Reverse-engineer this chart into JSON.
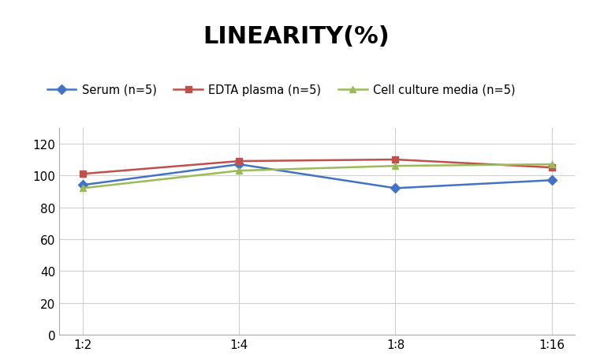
{
  "title": "LINEARITY(%)",
  "x_labels": [
    "1∶2",
    "1∶4",
    "1∶8",
    "1∶16"
  ],
  "x_positions": [
    0,
    1,
    2,
    3
  ],
  "series": [
    {
      "label": "Serum (n=5)",
      "values": [
        94,
        107,
        92,
        97
      ],
      "color": "#4472C4",
      "marker": "D",
      "marker_size": 6,
      "linewidth": 1.8
    },
    {
      "label": "EDTA plasma (n=5)",
      "values": [
        101,
        109,
        110,
        105
      ],
      "color": "#C0504D",
      "marker": "s",
      "marker_size": 6,
      "linewidth": 1.8
    },
    {
      "label": "Cell culture media (n=5)",
      "values": [
        92,
        103,
        106,
        107
      ],
      "color": "#9BBB59",
      "marker": "^",
      "marker_size": 6,
      "linewidth": 1.8
    }
  ],
  "ylim": [
    0,
    130
  ],
  "yticks": [
    0,
    20,
    40,
    60,
    80,
    100,
    120
  ],
  "grid_color": "#D0D0D0",
  "background_color": "#FFFFFF",
  "title_fontsize": 22,
  "legend_fontsize": 10.5,
  "tick_fontsize": 11
}
